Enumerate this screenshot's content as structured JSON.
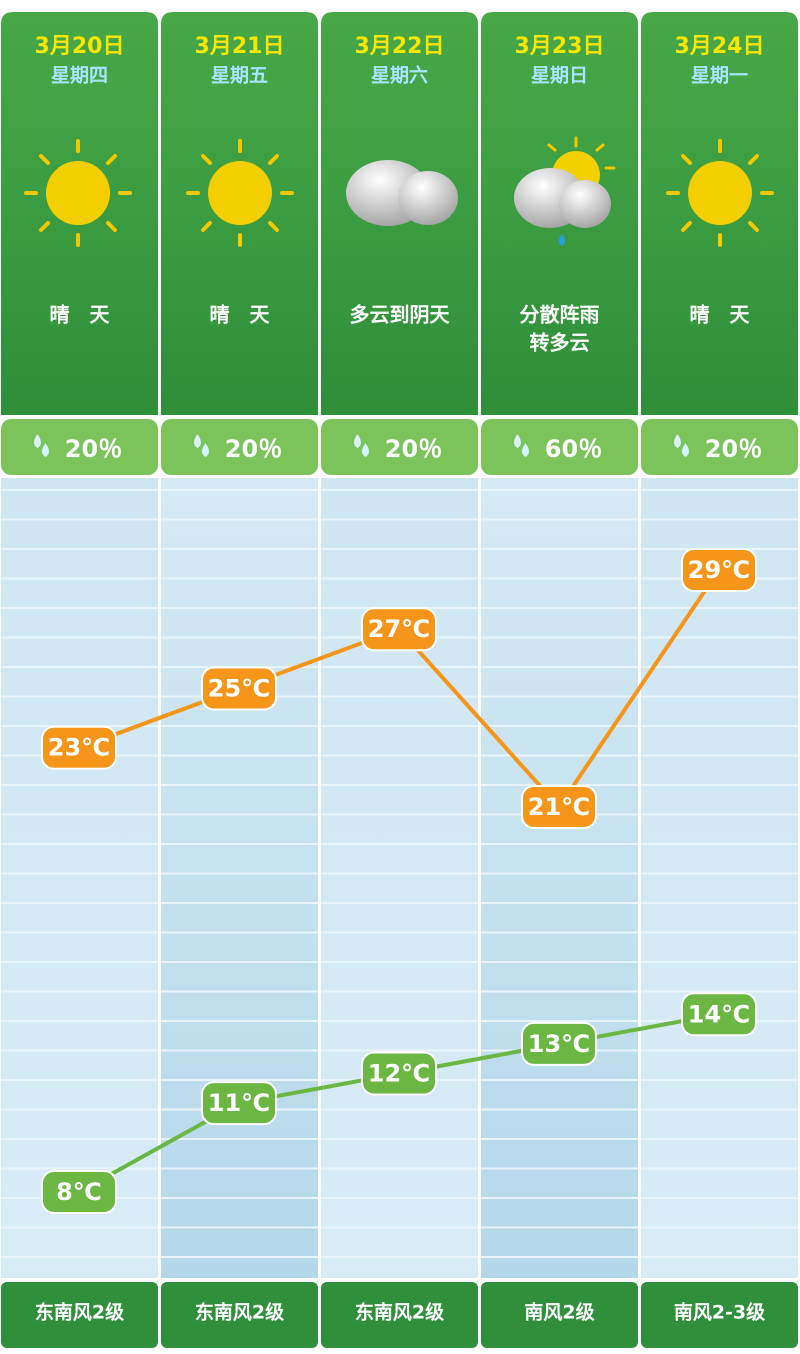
{
  "days": [
    {
      "date": "3月20日",
      "weekday": "星期四",
      "condition": [
        "晴　天"
      ],
      "precip": "20％",
      "high": 23,
      "high_label": "23℃",
      "low": 8,
      "low_label": "8℃",
      "wind": "东南风2级"
    },
    {
      "date": "3月21日",
      "weekday": "星期五",
      "condition": [
        "晴　天"
      ],
      "precip": "20％",
      "high": 25,
      "high_label": "25℃",
      "low": 11,
      "low_label": "11℃",
      "wind": "东南风2级"
    },
    {
      "date": "3月22日",
      "weekday": "星期六",
      "condition": [
        "多云到阴天"
      ],
      "precip": "20％",
      "high": 27,
      "high_label": "27℃",
      "low": 12,
      "low_label": "12℃",
      "wind": "东南风2级"
    },
    {
      "date": "3月23日",
      "weekday": "星期日",
      "condition": [
        "分散阵雨",
        "转多云"
      ],
      "precip": "60％",
      "high": 21,
      "high_label": "21℃",
      "low": 13,
      "low_label": "13℃",
      "wind": "南风2级"
    },
    {
      "date": "3月24日",
      "weekday": "星期一",
      "condition": [
        "晴　天"
      ],
      "precip": "20％",
      "high": 29,
      "high_label": "29℃",
      "low": 14,
      "low_label": "14℃",
      "wind": "南风2-3级"
    }
  ]
}
